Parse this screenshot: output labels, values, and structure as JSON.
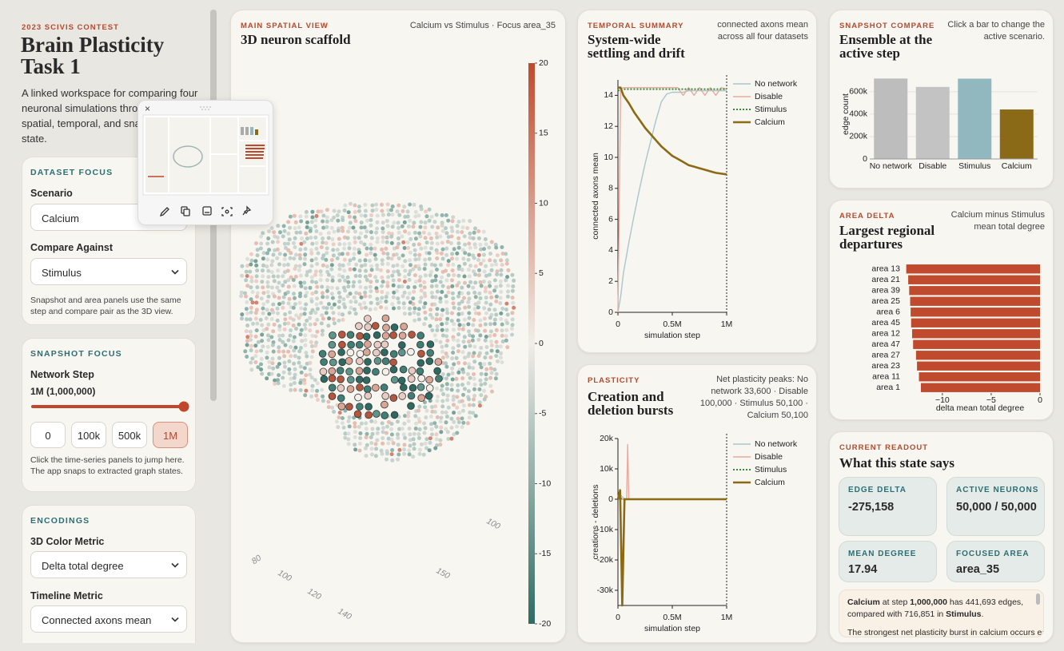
{
  "sidebar": {
    "eyebrow": "2023 SCIVIS CONTEST",
    "title": "Brain Plasticity Task 1",
    "intro": "A linked workspace for comparing four neuronal simulations through shared spatial, temporal, and snapshot-level state.",
    "dataset": {
      "heading": "DATASET FOCUS",
      "scenario_label": "Scenario",
      "scenario": "Calcium",
      "compare_label": "Compare Against",
      "compare": "Stimulus",
      "note": "Snapshot and area panels use the same step and compare pair as the 3D view."
    },
    "snapshot": {
      "heading": "SNAPSHOT FOCUS",
      "step_label": "Network Step",
      "step_value": "1M (1,000,000)",
      "buttons": [
        "0",
        "100k",
        "500k",
        "1M"
      ],
      "active_button": 3,
      "note": "Click the time-series panels to jump here. The app snaps to extracted graph states."
    },
    "encodings": {
      "heading": "ENCODINGS",
      "color_label": "3D Color Metric",
      "color_value": "Delta total degree",
      "timeline_label": "Timeline Metric",
      "timeline_value": "Connected axons mean"
    }
  },
  "popup": {
    "close": "×"
  },
  "spatial": {
    "eyebrow": "MAIN SPATIAL VIEW",
    "title": "3D neuron scaffold",
    "subtitle": "Calcium vs Stimulus · Focus area_35",
    "colorbar": {
      "ylim": [
        -20,
        20
      ],
      "yticks": [
        20,
        15,
        10,
        5,
        0,
        -5,
        -10,
        -15,
        -20
      ],
      "colors": [
        "#bf4a2e",
        "#f1ede8",
        "#2f6b64"
      ]
    },
    "axis_labels": [
      "100",
      "150",
      "80",
      "100",
      "120",
      "140"
    ]
  },
  "temporal": {
    "eyebrow": "TEMPORAL SUMMARY",
    "title": "System-wide settling and drift",
    "subtitle": "connected axons mean across all four datasets",
    "chart": {
      "type": "line",
      "x_label": "simulation step",
      "y_label": "connected axons mean",
      "x": [
        0,
        25000,
        50000,
        100000,
        150000,
        200000,
        250000,
        300000,
        350000,
        400000,
        450000,
        500000,
        550000,
        600000,
        650000,
        700000,
        750000,
        800000,
        850000,
        900000,
        950000,
        1000000
      ],
      "xlim": [
        0,
        1000000
      ],
      "xticks": [
        0,
        {
          "value": 500000,
          "label": "0.5M"
        },
        {
          "value": 1000000,
          "label": "1M"
        }
      ],
      "ylim": [
        0,
        15
      ],
      "yticks": [
        0,
        2,
        4,
        6,
        8,
        10,
        12,
        14
      ],
      "marker_x": 1000000,
      "series": [
        {
          "name": "No network",
          "color": "#a8c6cd",
          "values": [
            0,
            1.0,
            2.5,
            4.5,
            6.3,
            8.0,
            9.6,
            11.0,
            12.4,
            13.6,
            14.1,
            14.2,
            14.2,
            14.2,
            14.3,
            14.3,
            14.3,
            14.3,
            14.3,
            14.3,
            14.3,
            14.3
          ]
        },
        {
          "name": "Disable",
          "color": "#e8aa9c",
          "values": [
            0,
            14.4,
            14.5,
            14.5,
            14.5,
            14.5,
            14.5,
            14.5,
            14.5,
            14.5,
            14.5,
            14.5,
            14.5,
            14.0,
            14.5,
            14.0,
            14.5,
            14.0,
            14.5,
            14.0,
            14.5,
            14.4
          ]
        },
        {
          "name": "Stimulus",
          "color": "#3a8a3e",
          "dash": true,
          "values": [
            14.3,
            14.4,
            14.4,
            14.4,
            14.4,
            14.4,
            14.4,
            14.4,
            14.4,
            14.4,
            14.4,
            14.4,
            14.4,
            14.4,
            14.4,
            14.4,
            14.4,
            14.4,
            14.4,
            14.4,
            14.4,
            14.4
          ]
        },
        {
          "name": "Calcium",
          "color": "#8c6a14",
          "width": 2.6,
          "values": [
            14.5,
            14.5,
            14.0,
            13.5,
            12.9,
            12.4,
            11.9,
            11.5,
            11.1,
            10.7,
            10.4,
            10.1,
            9.9,
            9.7,
            9.5,
            9.4,
            9.3,
            9.2,
            9.1,
            9.0,
            8.95,
            8.9
          ]
        }
      ]
    }
  },
  "plasticity": {
    "eyebrow": "PLASTICITY",
    "title": "Creation and deletion bursts",
    "subtitle": "Net plasticity peaks: No network 33,600 · Disable 100,000 · Stimulus 50,100 · Calcium 50,100",
    "chart": {
      "type": "line",
      "x_label": "simulation step",
      "y_label": "creations - deletions",
      "x": [
        0,
        20000,
        40000,
        60000,
        80000,
        90000,
        100000,
        200000,
        400000,
        600000,
        800000,
        1000000
      ],
      "xlim": [
        0,
        1000000
      ],
      "xticks": [
        0,
        {
          "value": 500000,
          "label": "0.5M"
        },
        {
          "value": 1000000,
          "label": "1M"
        }
      ],
      "ylim": [
        -35000,
        20000
      ],
      "yticks": [
        {
          "value": 20000,
          "label": "20k"
        },
        {
          "value": 10000,
          "label": "10k"
        },
        0,
        {
          "value": -10000,
          "label": "-10k"
        },
        {
          "value": -20000,
          "label": "-20k"
        },
        {
          "value": -30000,
          "label": "-30k"
        }
      ],
      "marker_x": 1000000,
      "series": [
        {
          "name": "No network",
          "color": "#a8c6cd",
          "values": [
            0,
            1500,
            800,
            200,
            0,
            0,
            0,
            0,
            0,
            0,
            0,
            0
          ]
        },
        {
          "name": "Disable",
          "color": "#e8aa9c",
          "values": [
            0,
            0,
            0,
            0,
            0,
            18000,
            0,
            0,
            0,
            0,
            0,
            0
          ]
        },
        {
          "name": "Stimulus",
          "color": "#3a8a3e",
          "dash": true,
          "values": [
            0,
            500,
            0,
            0,
            0,
            0,
            0,
            0,
            0,
            0,
            0,
            0
          ]
        },
        {
          "name": "Calcium",
          "color": "#8c6a14",
          "width": 2.6,
          "values": [
            0,
            3000,
            -35000,
            0,
            0,
            0,
            0,
            0,
            0,
            0,
            0,
            0
          ]
        }
      ]
    }
  },
  "snapshot_compare": {
    "eyebrow": "SNAPSHOT COMPARE",
    "title": "Ensemble at the active step",
    "subtitle": "Click a bar to change the active scenario.",
    "chart": {
      "type": "bar",
      "y_label": "edge count",
      "categories": [
        "No network",
        "Disable",
        "Stimulus",
        "Calcium"
      ],
      "values": [
        718000,
        643000,
        716851,
        441693
      ],
      "colors": [
        "#bdbdbd",
        "#c3c3c3",
        "#92b8bf",
        "#8a6a17"
      ],
      "ylim": [
        0,
        770000
      ],
      "yticks": [
        0,
        {
          "value": 200000,
          "label": "200k"
        },
        {
          "value": 400000,
          "label": "400k"
        },
        {
          "value": 600000,
          "label": "600k"
        }
      ],
      "grid": true
    }
  },
  "area_delta": {
    "eyebrow": "AREA DELTA",
    "title": "Largest regional departures",
    "subtitle": "Calcium minus Stimulus mean total degree",
    "chart": {
      "type": "hbar",
      "x_label": "delta mean total degree",
      "categories": [
        "area 13",
        "area 21",
        "area 39",
        "area 25",
        "area 6",
        "area 45",
        "area 12",
        "area 47",
        "area 27",
        "area 23",
        "area 11",
        "area 1"
      ],
      "values": [
        -13.7,
        -13.5,
        -13.4,
        -13.3,
        -13.25,
        -13.2,
        -13.1,
        -13.0,
        -12.7,
        -12.6,
        -12.4,
        -12.2
      ],
      "color": "#bf4a2e",
      "xlim": [
        -14,
        0
      ],
      "xticks": [
        {
          "value": -10,
          "label": "−10"
        },
        {
          "value": -5,
          "label": "−5"
        },
        0
      ]
    }
  },
  "readout": {
    "eyebrow": "CURRENT READOUT",
    "title": "What this state says",
    "cards": [
      {
        "label": "EDGE DELTA",
        "value": "-275,158"
      },
      {
        "label": "ACTIVE NEURONS",
        "value": "50,000 / 50,000"
      },
      {
        "label": "MEAN DEGREE",
        "value": "17.94"
      },
      {
        "label": "FOCUSED AREA",
        "value": "area_35"
      }
    ],
    "note": [
      {
        "text": "Calcium",
        "bold": true
      },
      {
        "text": " at step "
      },
      {
        "text": "1,000,000",
        "bold": true
      },
      {
        "text": " has 441,693 edges, compared with 716,851 in "
      },
      {
        "text": "Stimulus",
        "bold": true
      },
      {
        "text": "."
      }
    ],
    "note2": "The strongest net plasticity burst in calcium occurs early in the run."
  }
}
